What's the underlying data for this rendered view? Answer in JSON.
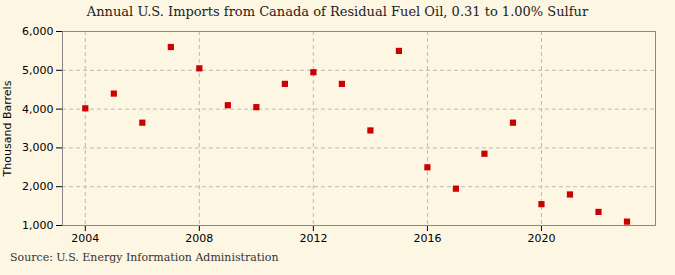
{
  "chart_data": {
    "type": "scatter",
    "title": "Annual U.S. Imports from Canada of Residual Fuel Oil, 0.31 to 1.00% Sulfur",
    "ylabel": "Thousand Barrels",
    "annotation": "Source: U.S. Energy Information Administration",
    "x": [
      2004,
      2005,
      2006,
      2007,
      2008,
      2009,
      2010,
      2011,
      2012,
      2013,
      2014,
      2015,
      2016,
      2017,
      2018,
      2019,
      2020,
      2021,
      2022,
      2023
    ],
    "values": [
      4020,
      4400,
      3650,
      5600,
      5050,
      4100,
      4050,
      4650,
      4950,
      4650,
      3450,
      5500,
      2500,
      1950,
      2850,
      3650,
      1550,
      1800,
      1350,
      1100
    ],
    "color": "#cc0000",
    "marker": "square",
    "xlim": [
      2003.2,
      2024.0
    ],
    "xticks": [
      2004,
      2008,
      2012,
      2016,
      2020
    ],
    "ylim": [
      1000,
      6000
    ],
    "yticks": [
      {
        "value": 1000,
        "label": "1,000"
      },
      {
        "value": 2000,
        "label": "2,000"
      },
      {
        "value": 3000,
        "label": "3,000"
      },
      {
        "value": 4000,
        "label": "4,000"
      },
      {
        "value": 5000,
        "label": "5,000"
      },
      {
        "value": 6000,
        "label": "6,000"
      }
    ],
    "grid": true
  }
}
